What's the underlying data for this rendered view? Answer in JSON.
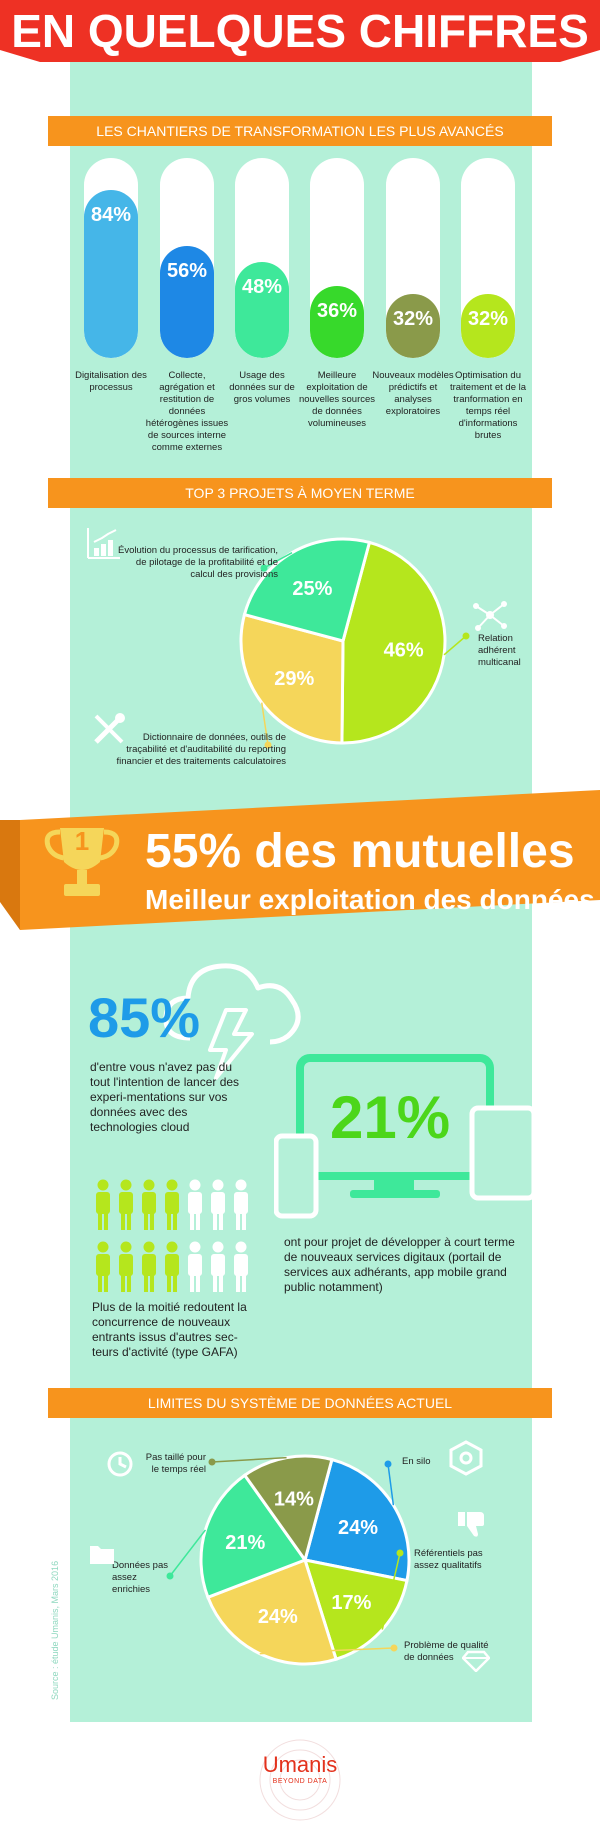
{
  "header": {
    "title": "EN QUELQUES CHIFFRES",
    "bg_color": "#ee3124"
  },
  "section1": {
    "title": "LES CHANTIERS DE TRANSFORMATION LES PLUS AVANCÉS",
    "items": [
      {
        "value": "84%",
        "fraction": 0.84,
        "color": "#45b6e8",
        "label": "Digitalisation des processus"
      },
      {
        "value": "56%",
        "fraction": 0.56,
        "color": "#1e88e5",
        "label": "Collecte, agrégation et restitution de données hétérogènes issues de sources interne comme externes"
      },
      {
        "value": "48%",
        "fraction": 0.48,
        "color": "#3ee89a",
        "label": "Usage des données sur de gros volumes"
      },
      {
        "value": "36%",
        "fraction": 0.36,
        "color": "#37d92b",
        "label": "Meilleure exploitation de nouvelles sources de données volumineuses"
      },
      {
        "value": "32%",
        "fraction": 0.32,
        "color": "#8a9a4a",
        "label": "Nouveaux modèles prédictifs et analyses exploratoires"
      },
      {
        "value": "32%",
        "fraction": 0.32,
        "color": "#b5e61d",
        "label": "Optimisation du traitement et de la tranformation en temps réel d'informations brutes"
      }
    ]
  },
  "section2": {
    "title": "TOP 3 PROJETS À MOYEN TERME",
    "slices": [
      {
        "value": "46%",
        "fraction": 0.46,
        "color": "#b5e61d",
        "label": "Relation adhérent multicanal"
      },
      {
        "value": "29%",
        "fraction": 0.29,
        "color": "#f5d65a",
        "label": "Dictionnaire de données, outils de traçabilité et d'auditabilité du reporting financier et des traitements calculatoires"
      },
      {
        "value": "25%",
        "fraction": 0.25,
        "color": "#3ee89a",
        "label": "Évolution du processus de tarification, de pilotage de la profitabilité et de calcul des provisions"
      }
    ]
  },
  "highlight": {
    "rank": "1",
    "headline": "55% des mutuelles",
    "subline": "Meilleur exploitation des données"
  },
  "cloud": {
    "value": "85%",
    "text": "d'entre vous n'avez pas du tout l'intention de lancer des experi-mentations sur vos données avec des technologies cloud"
  },
  "digital": {
    "value": "21%",
    "text": "ont pour projet de développer à court terme de nouveaux services digitaux (portail de services aux adhérants, app mobile grand public notamment)"
  },
  "people": {
    "text": "Plus de la moitié redoutent la concurrence de nouveaux entrants issus d'autres sec-teurs d'activité (type GAFA)",
    "highlight_color": "#b5e61d",
    "per_row": 7,
    "highlighted_per_row": 4
  },
  "section3": {
    "title": "LIMITES DU SYSTÈME DE DONNÉES ACTUEL",
    "slices": [
      {
        "value": "24%",
        "fraction": 0.24,
        "color": "#1e9be8",
        "label": "En silo"
      },
      {
        "value": "17%",
        "fraction": 0.17,
        "color": "#b5e61d",
        "label": "Référentiels pas assez qualitatifs"
      },
      {
        "value": "24%",
        "fraction": 0.24,
        "color": "#f5d65a",
        "label": "Problème de qualité de données"
      },
      {
        "value": "21%",
        "fraction": 0.21,
        "color": "#3ee89a",
        "label": "Données pas assez enrichies"
      },
      {
        "value": "14%",
        "fraction": 0.14,
        "color": "#8a9a4a",
        "label": "Pas taillé pour le temps réel"
      }
    ]
  },
  "source": "Source : étude Umanis, Mars 2016",
  "footer": {
    "brand": "Umanis",
    "tagline": "BEYOND DATA",
    "brand_color": "#e3311c"
  }
}
